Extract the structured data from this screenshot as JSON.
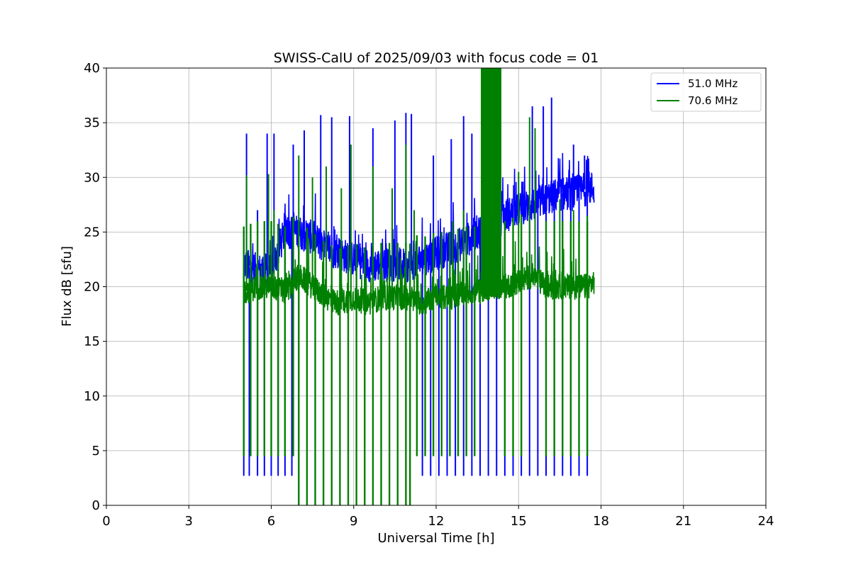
{
  "chart_data": {
    "type": "line",
    "title": "SWISS-CalU of 2025/09/03 with focus code = 01",
    "xlabel": "Universal Time [h]",
    "ylabel": "Flux dB [sfu]",
    "xlim": [
      0,
      24
    ],
    "ylim": [
      0,
      40
    ],
    "xticks": [
      0,
      3,
      6,
      9,
      12,
      15,
      18,
      21,
      24
    ],
    "yticks": [
      0,
      5,
      10,
      15,
      20,
      25,
      30,
      35,
      40
    ],
    "grid": true,
    "legend_position": "top-right",
    "series": [
      {
        "name": "51.0 MHz",
        "color": "#0000ff",
        "baseline_envelope": [
          [
            5.0,
            22
          ],
          [
            5.5,
            21.5
          ],
          [
            6.0,
            21.5
          ],
          [
            6.5,
            25
          ],
          [
            7.0,
            25
          ],
          [
            7.5,
            24.5
          ],
          [
            8.0,
            23.5
          ],
          [
            8.5,
            23
          ],
          [
            9.0,
            22.5
          ],
          [
            9.5,
            22
          ],
          [
            10.0,
            22
          ],
          [
            10.5,
            22
          ],
          [
            11.0,
            22
          ],
          [
            11.5,
            22.5
          ],
          [
            12.0,
            23
          ],
          [
            12.5,
            23.5
          ],
          [
            13.0,
            24
          ],
          [
            13.5,
            25
          ],
          [
            14.0,
            25.5
          ],
          [
            14.5,
            26.5
          ],
          [
            15.0,
            27
          ],
          [
            15.5,
            27.5
          ],
          [
            16.0,
            28
          ],
          [
            16.5,
            28.5
          ],
          [
            17.0,
            28.5
          ],
          [
            17.5,
            29
          ],
          [
            17.75,
            29
          ]
        ],
        "spikes": [
          [
            5.1,
            34
          ],
          [
            5.5,
            27
          ],
          [
            5.85,
            34
          ],
          [
            6.1,
            34
          ],
          [
            6.8,
            33
          ],
          [
            7.2,
            34.3
          ],
          [
            7.8,
            35.7
          ],
          [
            8.2,
            35.5
          ],
          [
            8.85,
            35.6
          ],
          [
            9.7,
            34.5
          ],
          [
            10.5,
            35.2
          ],
          [
            10.9,
            35.9
          ],
          [
            11.1,
            35.8
          ],
          [
            11.9,
            32
          ],
          [
            12.55,
            33.5
          ],
          [
            13.0,
            35.6
          ],
          [
            13.3,
            34
          ],
          [
            15.5,
            36.5
          ],
          [
            15.9,
            36.5
          ],
          [
            16.2,
            37.3
          ],
          [
            17.0,
            33
          ],
          [
            17.4,
            32
          ]
        ],
        "cal_dips": [
          5.0,
          5.2,
          5.5,
          5.75,
          6.0,
          6.25,
          6.5,
          6.75,
          11.5,
          11.8,
          12.1,
          12.4,
          12.7,
          13.0,
          13.3,
          13.6,
          13.9,
          14.2,
          14.5,
          14.8,
          15.1,
          15.4,
          15.7,
          16.0,
          16.3,
          16.6,
          16.9,
          17.2,
          17.5
        ]
      },
      {
        "name": "70.6 MHz",
        "color": "#008000",
        "baseline_envelope": [
          [
            5.0,
            19.5
          ],
          [
            5.5,
            20
          ],
          [
            6.0,
            20
          ],
          [
            6.5,
            19.5
          ],
          [
            7.0,
            21
          ],
          [
            7.5,
            20
          ],
          [
            8.0,
            19
          ],
          [
            8.5,
            18.5
          ],
          [
            9.0,
            19
          ],
          [
            9.5,
            18.5
          ],
          [
            10.0,
            19
          ],
          [
            10.5,
            19
          ],
          [
            11.0,
            19
          ],
          [
            11.5,
            18.5
          ],
          [
            12.0,
            19
          ],
          [
            12.5,
            19
          ],
          [
            13.0,
            19.5
          ],
          [
            13.5,
            19.5
          ],
          [
            14.0,
            20
          ],
          [
            14.5,
            20
          ],
          [
            15.0,
            20.5
          ],
          [
            15.5,
            21
          ],
          [
            16.0,
            20
          ],
          [
            16.5,
            20
          ],
          [
            17.0,
            20
          ],
          [
            17.5,
            20
          ],
          [
            17.75,
            20.5
          ]
        ],
        "spikes": [
          [
            5.1,
            30.2
          ],
          [
            5.9,
            30.3
          ],
          [
            6.1,
            27
          ],
          [
            7.0,
            32
          ],
          [
            7.5,
            30
          ],
          [
            8.0,
            31
          ],
          [
            8.55,
            29
          ],
          [
            8.9,
            33
          ],
          [
            9.7,
            31
          ],
          [
            10.4,
            29
          ],
          [
            10.9,
            33
          ],
          [
            11.2,
            27
          ],
          [
            12.6,
            26
          ],
          [
            13.0,
            27
          ],
          [
            15.0,
            30.5
          ],
          [
            15.4,
            35.5
          ],
          [
            15.6,
            34.5
          ],
          [
            16.5,
            28
          ],
          [
            17.0,
            27
          ],
          [
            17.5,
            26.5
          ]
        ],
        "burst_range": [
          13.65,
          14.35
        ],
        "cal_dips_to_zero": [
          7.0,
          7.3,
          7.6,
          7.9,
          8.2,
          8.5,
          8.8,
          9.1,
          9.4,
          9.7,
          10.0,
          10.3,
          10.6,
          10.9,
          11.05
        ],
        "cal_drops": [
          5.0,
          5.25,
          5.5,
          5.75,
          6.0,
          6.25,
          6.5,
          6.8,
          11.3,
          11.6,
          11.9,
          12.2,
          12.5,
          12.8,
          13.1,
          13.4,
          14.5,
          14.8,
          15.1,
          16.0,
          16.3,
          16.6,
          16.9,
          17.2,
          17.5
        ]
      }
    ]
  }
}
